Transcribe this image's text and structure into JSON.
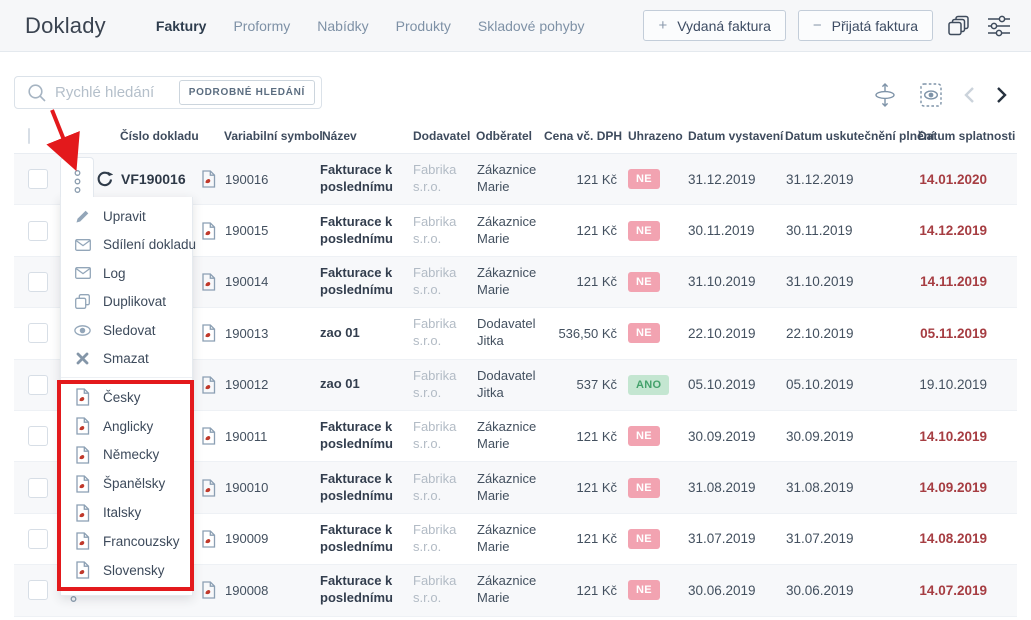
{
  "app": {
    "title": "Doklady"
  },
  "nav": {
    "items": [
      {
        "label": "Faktury",
        "active": true
      },
      {
        "label": "Proformy",
        "active": false
      },
      {
        "label": "Nabídky",
        "active": false
      },
      {
        "label": "Produkty",
        "active": false
      },
      {
        "label": "Skladové pohyby",
        "active": false
      }
    ]
  },
  "actions": {
    "issued_label": "Vydaná faktura",
    "received_label": "Přijatá faktura",
    "issued_sign": "+",
    "received_sign": "−",
    "toolbar_icons": [
      "stack-icon",
      "sliders-icon"
    ]
  },
  "search": {
    "placeholder": "Rychlé hledání",
    "advanced_label": "PODROBNÉ HLEDÁNÍ",
    "right_icons": [
      "fit-width-icon",
      "preview-card-icon",
      "chevron-left-icon",
      "chevron-right-icon"
    ]
  },
  "table": {
    "columns": [
      "Číslo dokladu",
      "Variabilní symbol",
      "Název",
      "Dodavatel",
      "Odběratel",
      "Cena vč. DPH",
      "Uhrazeno",
      "Datum vystavení",
      "Datum uskutečnění plnění",
      "Datum splatnosti"
    ],
    "rows": [
      {
        "controls": "full",
        "number": "VF190016",
        "vs": "190016",
        "name": "Fakturace k poslednímu",
        "supplier": "Fabrika s.r.o.",
        "customer": "Zákaznice Marie",
        "price": "121 Kč",
        "paid": "NE",
        "issued": "31.12.2019",
        "supply": "31.12.2019",
        "due": "14.01.2020",
        "overdue": true
      },
      {
        "controls": "none",
        "vs": "190015",
        "name": "Fakturace k poslednímu",
        "supplier": "Fabrika s.r.o.",
        "customer": "Zákaznice Marie",
        "price": "121 Kč",
        "paid": "NE",
        "issued": "30.11.2019",
        "supply": "30.11.2019",
        "due": "14.12.2019",
        "overdue": true
      },
      {
        "controls": "none",
        "vs": "190014",
        "name": "Fakturace k poslednímu",
        "supplier": "Fabrika s.r.o.",
        "customer": "Zákaznice Marie",
        "price": "121 Kč",
        "paid": "NE",
        "issued": "31.10.2019",
        "supply": "31.10.2019",
        "due": "14.11.2019",
        "overdue": true
      },
      {
        "controls": "none",
        "vs": "190013",
        "name": "zao 01",
        "supplier": "Fabrika s.r.o.",
        "customer": "Dodavatel Jitka",
        "price": "536,50 Kč",
        "paid": "NE",
        "issued": "22.10.2019",
        "supply": "22.10.2019",
        "due": "05.11.2019",
        "overdue": true
      },
      {
        "controls": "none",
        "vs": "190012",
        "name": "zao 01",
        "supplier": "Fabrika s.r.o.",
        "customer": "Dodavatel Jitka",
        "price": "537 Kč",
        "paid": "ANO",
        "issued": "05.10.2019",
        "supply": "05.10.2019",
        "due": "19.10.2019",
        "overdue": false
      },
      {
        "controls": "none",
        "vs": "190011",
        "name": "Fakturace k poslednímu",
        "supplier": "Fabrika s.r.o.",
        "customer": "Zákaznice Marie",
        "price": "121 Kč",
        "paid": "NE",
        "issued": "30.09.2019",
        "supply": "30.09.2019",
        "due": "14.10.2019",
        "overdue": true
      },
      {
        "controls": "none",
        "vs": "190010",
        "name": "Fakturace k poslednímu",
        "supplier": "Fabrika s.r.o.",
        "customer": "Zákaznice Marie",
        "price": "121 Kč",
        "paid": "NE",
        "issued": "31.08.2019",
        "supply": "31.08.2019",
        "due": "14.09.2019",
        "overdue": true
      },
      {
        "controls": "none",
        "vs": "190009",
        "name": "Fakturace k poslednímu",
        "supplier": "Fabrika s.r.o.",
        "customer": "Zákaznice Marie",
        "price": "121 Kč",
        "paid": "NE",
        "issued": "31.07.2019",
        "supply": "31.07.2019",
        "due": "14.08.2019",
        "overdue": true
      },
      {
        "controls": "dots",
        "vs": "190008",
        "name": "Fakturace k poslednímu",
        "supplier": "Fabrika s.r.o.",
        "customer": "Zákaznice Marie",
        "price": "121 Kč",
        "paid": "NE",
        "issued": "30.06.2019",
        "supply": "30.06.2019",
        "due": "14.07.2019",
        "overdue": true
      }
    ]
  },
  "menu": {
    "actions": [
      {
        "icon": "pencil-icon",
        "label": "Upravit"
      },
      {
        "icon": "envelope-icon",
        "label": "Sdílení dokladu"
      },
      {
        "icon": "envelope-icon",
        "label": "Log"
      },
      {
        "icon": "duplicate-icon",
        "label": "Duplikovat"
      },
      {
        "icon": "eye-icon",
        "label": "Sledovat"
      },
      {
        "icon": "delete-icon",
        "label": "Smazat"
      }
    ],
    "languages": [
      {
        "icon": "pdf-icon",
        "label": "Česky"
      },
      {
        "icon": "pdf-icon",
        "label": "Anglicky"
      },
      {
        "icon": "pdf-icon",
        "label": "Německy"
      },
      {
        "icon": "pdf-icon",
        "label": "Španělsky"
      },
      {
        "icon": "pdf-icon",
        "label": "Italsky"
      },
      {
        "icon": "pdf-icon",
        "label": "Francouzsky"
      },
      {
        "icon": "pdf-icon",
        "label": "Slovensky"
      }
    ]
  },
  "colors": {
    "annotation": "#e3191c",
    "overdue": "#a63d42",
    "paid_no_bg": "#f2a3b1",
    "paid_no_text": "#ffffff",
    "paid_yes_bg": "#c4e6d1",
    "paid_yes_text": "#44a16b",
    "nav_active": "#2d3c4d",
    "nav_inactive": "#7e91a6"
  }
}
